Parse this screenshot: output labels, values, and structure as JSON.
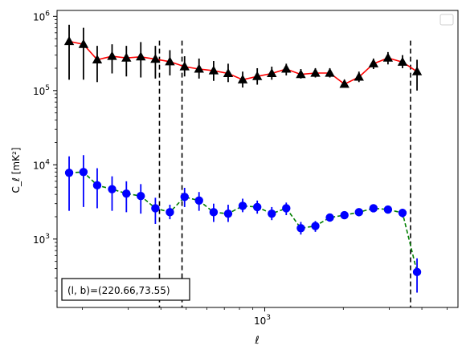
{
  "chart_data": {
    "type": "scatter",
    "xlabel": "ℓ",
    "ylabel": "C_ℓ  [mK²]",
    "x_scale": "log",
    "y_scale": "log",
    "xlim": [
      160,
      5500
    ],
    "ylim": [
      120,
      1200000
    ],
    "x_ticks": [
      {
        "value": 1000,
        "base": "10",
        "exp": "3"
      }
    ],
    "y_ticks": [
      {
        "value": 1000,
        "base": "10",
        "exp": "3"
      },
      {
        "value": 10000,
        "base": "10",
        "exp": "4"
      },
      {
        "value": 100000,
        "base": "10",
        "exp": "5"
      },
      {
        "value": 1000000,
        "base": "10",
        "exp": "6"
      }
    ],
    "legend": {
      "position": "top-right",
      "entries": []
    },
    "annotation": "(l, b)=(220.66,73.55)",
    "annotation_position": "bottom-left",
    "vlines": [
      {
        "x": 395,
        "style": "dashed",
        "color": "#000000"
      },
      {
        "x": 482,
        "style": "dashed",
        "color": "#000000"
      },
      {
        "x": 3620,
        "style": "dashed",
        "color": "#000000"
      }
    ],
    "series": [
      {
        "marker": "triangle",
        "marker_color": "#000000",
        "line_color": "#ff0000",
        "line_style": "solid",
        "x": [
          178,
          202,
          228,
          260,
          295,
          335,
          381,
          433,
          493,
          560,
          637,
          724,
          823,
          936,
          1064,
          1209,
          1375,
          1563,
          1776,
          2020,
          2296,
          2610,
          2966,
          3372,
          3833,
          4357
        ],
        "y": [
          460000,
          420000,
          260000,
          290000,
          275000,
          285000,
          265000,
          245000,
          210000,
          195000,
          185000,
          170000,
          140000,
          155000,
          170000,
          195000,
          165000,
          172000,
          172000,
          122000,
          152000,
          230000,
          275000,
          242000,
          180000,
          null
        ],
        "y_low": [
          140000,
          140000,
          130000,
          170000,
          155000,
          150000,
          145000,
          160000,
          155000,
          145000,
          135000,
          130000,
          110000,
          120000,
          140000,
          160000,
          145000,
          150000,
          150000,
          110000,
          130000,
          195000,
          225000,
          200000,
          100000,
          null
        ],
        "y_high": [
          770000,
          700000,
          400000,
          420000,
          400000,
          450000,
          400000,
          350000,
          290000,
          270000,
          250000,
          230000,
          180000,
          200000,
          210000,
          230000,
          195000,
          200000,
          200000,
          140000,
          180000,
          270000,
          330000,
          300000,
          260000,
          null
        ]
      },
      {
        "marker": "circle",
        "marker_color": "#0000ff",
        "line_color": "#008000",
        "line_style": "dashed",
        "x": [
          178,
          202,
          228,
          260,
          295,
          335,
          381,
          433,
          493,
          560,
          637,
          724,
          823,
          936,
          1064,
          1209,
          1375,
          1563,
          1776,
          2020,
          2296,
          2610,
          2966,
          3372,
          3833,
          4357
        ],
        "y": [
          7800,
          8000,
          5300,
          4700,
          4100,
          3800,
          2600,
          2300,
          3700,
          3300,
          2300,
          2200,
          2800,
          2700,
          2200,
          2600,
          1400,
          1500,
          1950,
          2100,
          2300,
          2600,
          2500,
          2250,
          360,
          null
        ],
        "y_low": [
          2400,
          2700,
          2600,
          2400,
          2300,
          2200,
          1600,
          1850,
          2700,
          2400,
          1700,
          1700,
          2300,
          2200,
          1800,
          2100,
          1150,
          1250,
          1750,
          1900,
          2100,
          2400,
          2250,
          1950,
          190,
          null
        ],
        "y_high": [
          13000,
          13500,
          9000,
          7000,
          6000,
          5500,
          3600,
          2900,
          4900,
          4300,
          3000,
          2900,
          3500,
          3300,
          2700,
          3100,
          1700,
          1750,
          2200,
          2350,
          2500,
          2850,
          2750,
          2550,
          550,
          null
        ]
      }
    ]
  }
}
